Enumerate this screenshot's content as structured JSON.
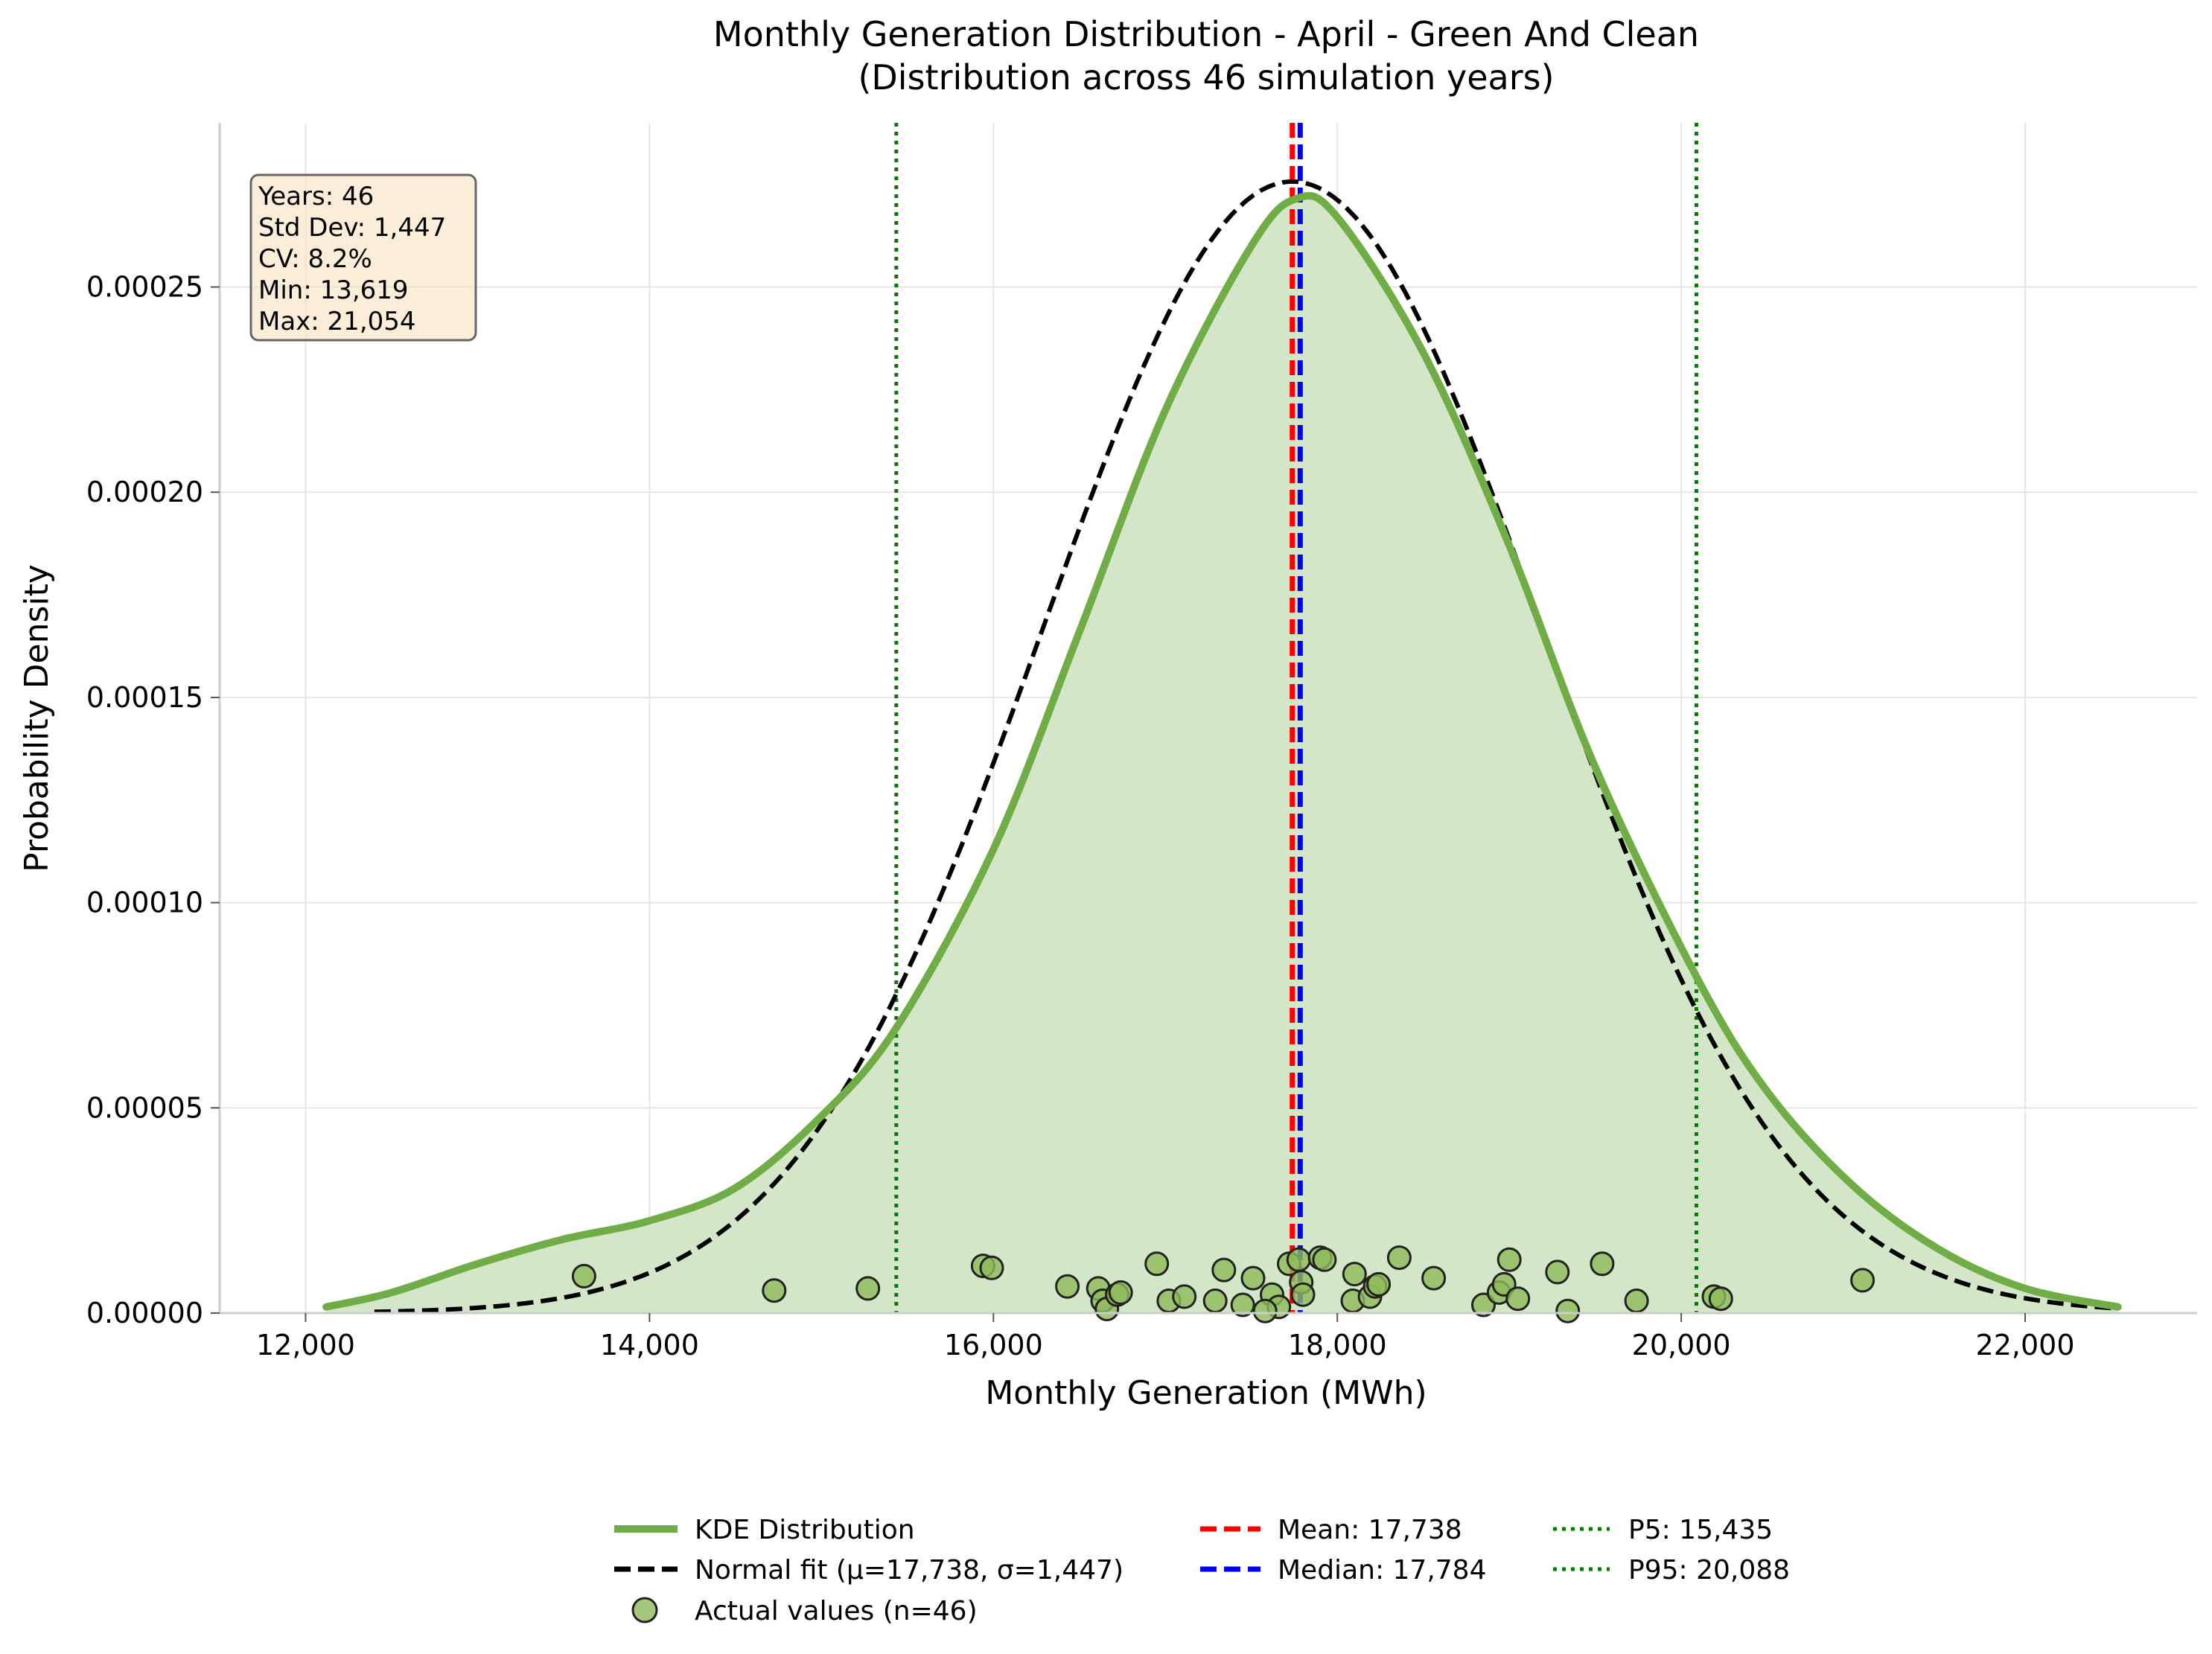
{
  "chart_data": {
    "type": "area",
    "title": "Monthly Generation Distribution - April - Green And Clean",
    "subtitle": "(Distribution across 46 simulation years)",
    "xlabel": "Monthly Generation (MWh)",
    "ylabel": "Probability Density",
    "xlim": [
      11500,
      23000
    ],
    "ylim": [
      0,
      0.00029
    ],
    "x_ticks": [
      12000,
      14000,
      16000,
      18000,
      20000,
      22000
    ],
    "x_tick_labels": [
      "12,000",
      "14,000",
      "16,000",
      "18,000",
      "20,000",
      "22,000"
    ],
    "y_ticks": [
      0,
      5e-05,
      0.0001,
      0.00015,
      0.0002,
      0.00025
    ],
    "y_tick_labels": [
      "0.00000",
      "0.00005",
      "0.00010",
      "0.00015",
      "0.00020",
      "0.00025"
    ],
    "grid": true,
    "legend_position": "bottom-center",
    "stats_box": {
      "lines": [
        "Years: 46",
        "Std Dev: 1,447",
        "CV: 8.2%",
        "Min: 13,619",
        "Max: 21,054"
      ]
    },
    "series": [
      {
        "name": "KDE Distribution",
        "type": "area",
        "color": "#70ad47",
        "fill": "#d3e6c7",
        "x": [
          12120,
          12500,
          13000,
          13500,
          14000,
          14500,
          15000,
          15435,
          16000,
          16500,
          17000,
          17500,
          17760,
          18000,
          18500,
          19000,
          19500,
          20088,
          20500,
          21000,
          21500,
          22000,
          22540
        ],
        "y": [
          1.5e-06,
          5e-06,
          1.2e-05,
          1.8e-05,
          2.25e-05,
          3.05e-05,
          4.8e-05,
          6.95e-05,
          0.000113,
          0.000166,
          0.00022,
          0.00026,
          0.0002715,
          0.000267,
          0.000234,
          0.000187,
          0.000133,
          8.2e-05,
          5.4e-05,
          3.1e-05,
          1.55e-05,
          6e-06,
          1.5e-06
        ]
      },
      {
        "name": "Normal fit (μ=17,738, σ=1,447)",
        "type": "line",
        "style": "dashed",
        "color": "#000000",
        "mu": 17738,
        "sigma": 1447,
        "x_range": [
          12400,
          22540
        ]
      },
      {
        "name": "Actual values (n=46)",
        "type": "scatter",
        "color": "#8fbc5a",
        "points": [
          [
            13619,
            9e-06
          ],
          [
            14725,
            5.5e-06
          ],
          [
            15270,
            6e-06
          ],
          [
            15940,
            1.15e-05
          ],
          [
            15990,
            1.1e-05
          ],
          [
            16430,
            6.5e-06
          ],
          [
            16610,
            6e-06
          ],
          [
            16635,
            3e-06
          ],
          [
            16660,
            1e-06
          ],
          [
            16720,
            4.5e-06
          ],
          [
            16740,
            5e-06
          ],
          [
            16950,
            1.2e-05
          ],
          [
            17020,
            3e-06
          ],
          [
            17110,
            4e-06
          ],
          [
            17290,
            3e-06
          ],
          [
            17340,
            1.05e-05
          ],
          [
            17450,
            2e-06
          ],
          [
            17510,
            8.5e-06
          ],
          [
            17620,
            4.5e-06
          ],
          [
            17660,
            1.5e-06
          ],
          [
            17720,
            1.2e-05
          ],
          [
            17775,
            1.3e-05
          ],
          [
            17790,
            7.5e-06
          ],
          [
            17800,
            4.5e-06
          ],
          [
            17900,
            1.35e-05
          ],
          [
            17925,
            1.3e-05
          ],
          [
            18090,
            3e-06
          ],
          [
            18100,
            9.5e-06
          ],
          [
            18190,
            4e-06
          ],
          [
            18220,
            6.5e-06
          ],
          [
            18240,
            7e-06
          ],
          [
            18360,
            1.35e-05
          ],
          [
            18560,
            8.5e-06
          ],
          [
            18850,
            2e-06
          ],
          [
            18940,
            5e-06
          ],
          [
            18970,
            7e-06
          ],
          [
            19000,
            1.3e-05
          ],
          [
            19050,
            3.5e-06
          ],
          [
            19280,
            1e-05
          ],
          [
            19340,
            5e-07
          ],
          [
            19540,
            1.2e-05
          ],
          [
            19740,
            3e-06
          ],
          [
            20190,
            4e-06
          ],
          [
            20230,
            3.5e-06
          ],
          [
            21054,
            8e-06
          ],
          [
            17580,
            5e-07
          ]
        ]
      },
      {
        "name": "Mean: 17,738",
        "type": "vline",
        "style": "dashed",
        "color": "#ff0000",
        "x": 17738
      },
      {
        "name": "Median: 17,784",
        "type": "vline",
        "style": "dashed",
        "color": "#0000ff",
        "x": 17784
      },
      {
        "name": "P5: 15,435",
        "type": "vline",
        "style": "dotted",
        "color": "#007f00",
        "x": 15435
      },
      {
        "name": "P95: 20,088",
        "type": "vline",
        "style": "dotted",
        "color": "#007f00",
        "x": 20088
      }
    ]
  }
}
